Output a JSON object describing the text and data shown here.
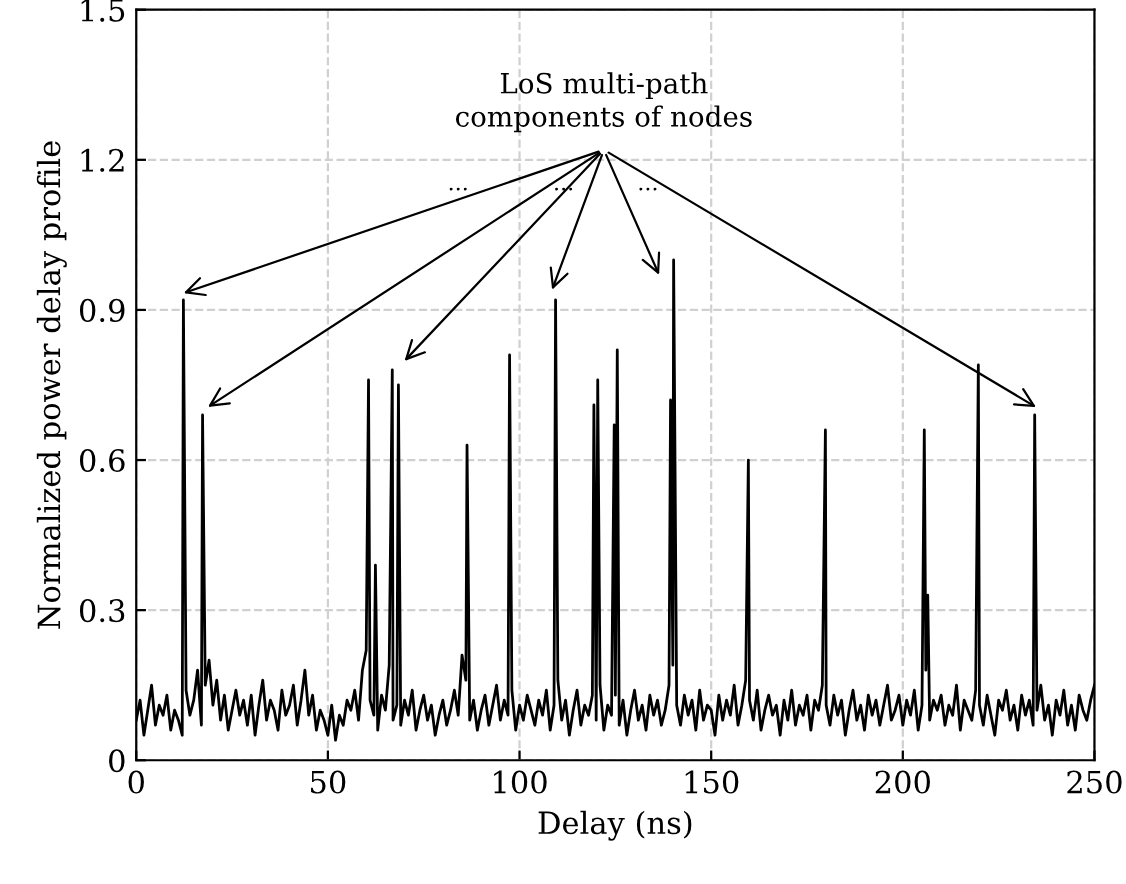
{
  "chart_data": {
    "type": "line",
    "xlabel": "Delay (ns)",
    "ylabel": "Normalized power delay profile",
    "xlim": [
      0,
      250
    ],
    "xticks": [
      0,
      50,
      100,
      150,
      200,
      250
    ],
    "ylim": [
      0,
      1.5
    ],
    "yticks": [
      0,
      0.3,
      0.6,
      0.9,
      1.2,
      1.5
    ],
    "grid": true,
    "line_style": "solid",
    "marker": "none",
    "annotations": [
      "LoS multi-path\ncomponents of nodes",
      "...",
      "...",
      "..."
    ],
    "series": [
      {
        "color": "#000000",
        "x": [
          0,
          1,
          2,
          3,
          4,
          5,
          6,
          7,
          8,
          9,
          10,
          11,
          12,
          12.3,
          13,
          14,
          15,
          16,
          17,
          17.3,
          18,
          19,
          20,
          21,
          22,
          23,
          24,
          25,
          26,
          27,
          28,
          29,
          30,
          31,
          32,
          33,
          34,
          35,
          36,
          37,
          38,
          39,
          40,
          41,
          42,
          43,
          44,
          45,
          46,
          47,
          48,
          49,
          50,
          51,
          52,
          53,
          54,
          55,
          56,
          57,
          58,
          59,
          60,
          60.6,
          61,
          62,
          62.4,
          63,
          64,
          65,
          66,
          66.8,
          67,
          68,
          68.4,
          69,
          70,
          71,
          72,
          73,
          74,
          75,
          76,
          77,
          78,
          79,
          80,
          81,
          82,
          83,
          84,
          85,
          86,
          86.3,
          87,
          88,
          89,
          90,
          91,
          92,
          93,
          94,
          95,
          96,
          97,
          97.4,
          98,
          99,
          100,
          101,
          102,
          103,
          104,
          105,
          106,
          107,
          108,
          109,
          109.4,
          110,
          111,
          112,
          113,
          114,
          115,
          116,
          117,
          118,
          119,
          119.4,
          120,
          120.4,
          121,
          122,
          123,
          124,
          124.7,
          125,
          125.5,
          126,
          127,
          128,
          129,
          130,
          131,
          132,
          133,
          134,
          135,
          136,
          137,
          138,
          139,
          139.4,
          140,
          140.2,
          141,
          142,
          143,
          144,
          145,
          146,
          147,
          148,
          149,
          150,
          151,
          152,
          153,
          154,
          155,
          156,
          157,
          158,
          159,
          159.7,
          160,
          161,
          162,
          163,
          164,
          165,
          166,
          167,
          168,
          169,
          170,
          171,
          172,
          173,
          174,
          175,
          176,
          177,
          178,
          179,
          179.8,
          180,
          181,
          182,
          183,
          184,
          185,
          186,
          187,
          188,
          189,
          190,
          191,
          192,
          193,
          194,
          195,
          196,
          197,
          198,
          199,
          200,
          201,
          202,
          203,
          204,
          205,
          205.6,
          206,
          206.5,
          207,
          208,
          209,
          210,
          211,
          212,
          213,
          214,
          215,
          216,
          217,
          218,
          219,
          219.7,
          220,
          221,
          222,
          223,
          224,
          225,
          226,
          227,
          228,
          229,
          230,
          231,
          232,
          233,
          234,
          234.4,
          235,
          236,
          237,
          238,
          239,
          240,
          241,
          242,
          243,
          244,
          245,
          246,
          247,
          248,
          249,
          250
        ],
        "values": [
          0.08,
          0.12,
          0.05,
          0.1,
          0.15,
          0.07,
          0.11,
          0.09,
          0.13,
          0.06,
          0.1,
          0.08,
          0.05,
          0.92,
          0.14,
          0.09,
          0.12,
          0.18,
          0.07,
          0.69,
          0.15,
          0.2,
          0.11,
          0.16,
          0.08,
          0.13,
          0.06,
          0.1,
          0.14,
          0.09,
          0.12,
          0.07,
          0.13,
          0.05,
          0.11,
          0.16,
          0.08,
          0.12,
          0.1,
          0.06,
          0.14,
          0.09,
          0.11,
          0.15,
          0.07,
          0.12,
          0.18,
          0.09,
          0.13,
          0.06,
          0.1,
          0.08,
          0.05,
          0.11,
          0.04,
          0.09,
          0.07,
          0.12,
          0.1,
          0.14,
          0.08,
          0.18,
          0.22,
          0.76,
          0.12,
          0.09,
          0.39,
          0.06,
          0.13,
          0.1,
          0.19,
          0.78,
          0.08,
          0.11,
          0.75,
          0.07,
          0.12,
          0.09,
          0.14,
          0.06,
          0.1,
          0.13,
          0.08,
          0.11,
          0.05,
          0.09,
          0.12,
          0.07,
          0.1,
          0.14,
          0.09,
          0.21,
          0.16,
          0.63,
          0.08,
          0.12,
          0.06,
          0.1,
          0.13,
          0.07,
          0.11,
          0.15,
          0.08,
          0.12,
          0.09,
          0.81,
          0.14,
          0.06,
          0.11,
          0.08,
          0.13,
          0.1,
          0.07,
          0.12,
          0.09,
          0.14,
          0.06,
          0.11,
          0.92,
          0.16,
          0.08,
          0.12,
          0.05,
          0.1,
          0.14,
          0.07,
          0.11,
          0.09,
          0.13,
          0.71,
          0.08,
          0.76,
          0.15,
          0.06,
          0.11,
          0.09,
          0.67,
          0.13,
          0.82,
          0.07,
          0.12,
          0.05,
          0.1,
          0.14,
          0.08,
          0.11,
          0.06,
          0.13,
          0.09,
          0.12,
          0.07,
          0.1,
          0.15,
          0.72,
          0.19,
          1.0,
          0.11,
          0.07,
          0.13,
          0.09,
          0.12,
          0.06,
          0.14,
          0.08,
          0.11,
          0.1,
          0.05,
          0.13,
          0.08,
          0.12,
          0.09,
          0.15,
          0.07,
          0.11,
          0.16,
          0.6,
          0.12,
          0.08,
          0.14,
          0.06,
          0.1,
          0.13,
          0.09,
          0.11,
          0.05,
          0.12,
          0.08,
          0.14,
          0.07,
          0.11,
          0.09,
          0.13,
          0.06,
          0.12,
          0.1,
          0.15,
          0.66,
          0.11,
          0.07,
          0.13,
          0.09,
          0.12,
          0.05,
          0.1,
          0.14,
          0.08,
          0.11,
          0.06,
          0.13,
          0.09,
          0.12,
          0.07,
          0.11,
          0.15,
          0.08,
          0.1,
          0.13,
          0.07,
          0.12,
          0.09,
          0.14,
          0.06,
          0.11,
          0.66,
          0.18,
          0.33,
          0.08,
          0.12,
          0.1,
          0.13,
          0.07,
          0.11,
          0.09,
          0.15,
          0.06,
          0.12,
          0.1,
          0.08,
          0.14,
          0.79,
          0.11,
          0.07,
          0.13,
          0.09,
          0.05,
          0.12,
          0.1,
          0.14,
          0.08,
          0.11,
          0.06,
          0.13,
          0.09,
          0.12,
          0.07,
          0.69,
          0.1,
          0.15,
          0.08,
          0.11,
          0.05,
          0.12,
          0.09,
          0.14,
          0.07,
          0.11,
          0.06,
          0.13,
          0.1,
          0.08,
          0.12,
          0.15
        ]
      }
    ]
  }
}
